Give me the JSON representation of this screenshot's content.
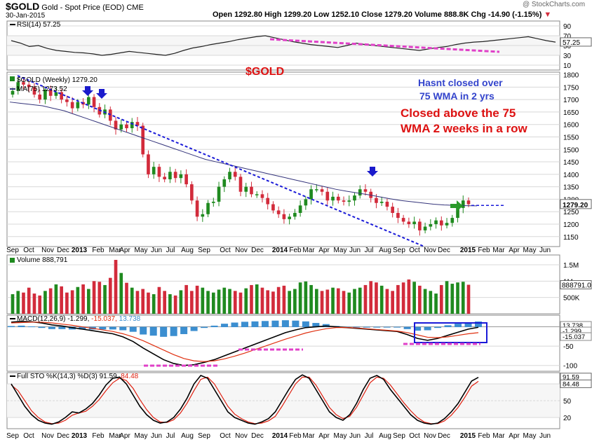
{
  "header": {
    "symbol": "$GOLD",
    "name": "Gold - Spot Price (EOD)",
    "exchange": "CME",
    "date": "30-Jan-2015",
    "ohlc": "Open 1292.80  High 1299.20  Low 1252.10  Close 1279.20  Volume 888.8K  Chg -14.90 (-1.15%)",
    "change_arrow": "▼",
    "watermark": "@ StockCharts.com"
  },
  "annotations": {
    "title": "$GOLD",
    "note1_line1": "Hasnt closed over",
    "note1_line2": "75 WMA in 2 yrs",
    "note2_line1": "Closed above the 75",
    "note2_line2": "WMA  2 weeks in a row",
    "colors": {
      "title": "#dd1111",
      "note1": "#3344cc",
      "note2": "#dd1111"
    }
  },
  "colors": {
    "up": "#1f8a1f",
    "down": "#d22b3b",
    "ma": "#33337a",
    "grid": "#d8d8d8",
    "trend": "#1a1ad8",
    "pink": "#e040c8",
    "rsi": "#222222",
    "macd": "#000000",
    "signal": "#e03010",
    "hist": "#3b8ed0",
    "stok": "#000000",
    "stod": "#e02010",
    "arrow_blue": "#1a1acc",
    "arrow_green": "#2a9a2a"
  },
  "chart_data": [
    {
      "panel": "rsi",
      "type": "line",
      "legend": "RSI(14) 57.25",
      "legend_prefix": "RSI(14)",
      "legend_value": "57.25",
      "y_ticks": [
        90,
        70,
        50,
        30,
        10
      ],
      "ylim": [
        0,
        100
      ],
      "last_value_label": "57.25",
      "values": [
        60,
        55,
        48,
        50,
        44,
        40,
        38,
        36,
        35,
        33,
        30,
        32,
        35,
        38,
        36,
        34,
        32,
        30,
        34,
        40,
        45,
        48,
        52,
        55,
        58,
        62,
        65,
        68,
        70,
        66,
        62,
        58,
        55,
        52,
        50,
        48,
        46,
        50,
        55,
        52,
        50,
        48,
        46,
        44,
        42,
        40,
        43,
        46,
        48,
        52,
        55,
        57,
        58,
        60,
        62,
        64,
        66,
        68,
        64,
        60,
        57
      ]
    },
    {
      "panel": "price",
      "type": "candlestick",
      "legend_line1": "$GOLD (Weekly) 1279.20",
      "legend_line2": "MA(75) 1273.52",
      "y_ticks": [
        1800,
        1750,
        1700,
        1650,
        1600,
        1550,
        1500,
        1450,
        1400,
        1350,
        1300,
        1250,
        1200,
        1150
      ],
      "ylim": [
        1110,
        1810
      ],
      "last_price_label": "1279.20",
      "ma_last_label": "1273.52",
      "x_labels": [
        "Sep",
        "Oct",
        "Nov",
        "Dec",
        "2013",
        "Feb",
        "Mar",
        "Apr",
        "May",
        "Jun",
        "Jul",
        "Aug",
        "Sep",
        "Oct",
        "Nov",
        "Dec",
        "2014",
        "Feb",
        "Mar",
        "Apr",
        "May",
        "Jun",
        "Jul",
        "Aug",
        "Sep",
        "Oct",
        "Nov",
        "Dec",
        "2015",
        "Feb",
        "Mar",
        "Apr",
        "May",
        "Jun"
      ],
      "closes": [
        1735,
        1770,
        1760,
        1750,
        1720,
        1700,
        1740,
        1715,
        1730,
        1700,
        1690,
        1665,
        1690,
        1680,
        1710,
        1670,
        1640,
        1660,
        1615,
        1580,
        1600,
        1585,
        1610,
        1595,
        1480,
        1400,
        1430,
        1390,
        1380,
        1410,
        1385,
        1400,
        1360,
        1295,
        1230,
        1240,
        1285,
        1290,
        1350,
        1380,
        1410,
        1390,
        1330,
        1350,
        1320,
        1320,
        1305,
        1280,
        1255,
        1240,
        1220,
        1230,
        1245,
        1275,
        1300,
        1340,
        1340,
        1330,
        1295,
        1310,
        1295,
        1290,
        1295,
        1315,
        1340,
        1330,
        1305,
        1285,
        1290,
        1270,
        1245,
        1225,
        1210,
        1200,
        1210,
        1175,
        1190,
        1200,
        1215,
        1195,
        1205,
        1225,
        1265,
        1295,
        1280
      ],
      "ma75": [
        1690,
        1685,
        1680,
        1675,
        1665,
        1655,
        1640,
        1625,
        1610,
        1595,
        1580,
        1565,
        1550,
        1535,
        1520,
        1505,
        1490,
        1475,
        1460,
        1450,
        1440,
        1430,
        1420,
        1410,
        1400,
        1390,
        1380,
        1370,
        1360,
        1350,
        1340,
        1332,
        1325,
        1318,
        1310,
        1302,
        1295,
        1290,
        1285,
        1280,
        1277,
        1275,
        1274,
        1273.5
      ]
    },
    {
      "panel": "volume",
      "type": "bar",
      "legend": "Volume 888,791",
      "legend_prefix": "Volume",
      "legend_value": "888,791",
      "y_ticks": [
        "1.5M",
        "1M",
        "500K"
      ],
      "y_tick_values": [
        1500000,
        1000000,
        500000
      ],
      "ylim": [
        0,
        1800000
      ],
      "last_value_label": "888791.0",
      "values": [
        600000,
        700000,
        650000,
        800000,
        620000,
        560000,
        700000,
        780000,
        900000,
        840000,
        650000,
        720000,
        820000,
        900000,
        760000,
        1000000,
        980000,
        880000,
        1100000,
        1650000,
        1250000,
        950000,
        800000,
        700000,
        760000,
        650000,
        600000,
        820000,
        700000,
        600000,
        560000,
        720000,
        880000,
        700000,
        860000,
        800000,
        700000,
        650000,
        740000,
        800000,
        760000,
        700000,
        650000,
        780000,
        880000,
        900000,
        800000,
        720000,
        680000,
        820000,
        860000,
        700000,
        760000,
        960000,
        990000,
        880000,
        760000,
        700000,
        740000,
        800000,
        780000,
        700000,
        650000,
        760000,
        800000,
        880000,
        1000000,
        960000,
        860000,
        760000,
        700000,
        880000,
        960000,
        1050000,
        980000,
        860000,
        760000,
        700000,
        620000,
        880000,
        1000000,
        920000,
        960000,
        980000,
        889000
      ]
    },
    {
      "panel": "macd",
      "type": "line",
      "legend_prefix": "MACD(12,26,9)",
      "legend_macd": "-1.299,",
      "legend_signal": "-15.037,",
      "legend_hist": "13.738",
      "y_ticks": [
        -50,
        -100
      ],
      "ylim": [
        -115,
        30
      ],
      "labels_right": [
        "13.738",
        "-1.299",
        "-15.037"
      ],
      "macd": [
        12,
        14,
        13,
        10,
        5,
        2,
        -2,
        -6,
        -10,
        -14,
        -18,
        -26,
        -38,
        -55,
        -70,
        -85,
        -95,
        -100,
        -98,
        -92,
        -85,
        -75,
        -65,
        -55,
        -45,
        -35,
        -25,
        -15,
        -8,
        -2,
        0,
        2,
        0,
        -2,
        -4,
        -6,
        -8,
        -10,
        -12,
        -20,
        -30,
        -35,
        -30,
        -22,
        -14,
        -6,
        -1.3
      ],
      "signal": [
        10,
        11,
        12,
        12,
        10,
        7,
        4,
        0,
        -4,
        -8,
        -12,
        -18,
        -26,
        -36,
        -48,
        -60,
        -72,
        -82,
        -88,
        -90,
        -88,
        -83,
        -76,
        -68,
        -59,
        -50,
        -41,
        -32,
        -24,
        -16,
        -10,
        -5,
        -2,
        -2,
        -3,
        -5,
        -7,
        -9,
        -11,
        -15,
        -21,
        -27,
        -28,
        -26,
        -22,
        -18,
        -15.037
      ],
      "hist": [
        2,
        3,
        1,
        -2,
        -5,
        -5,
        -6,
        -6,
        -6,
        -6,
        -6,
        -8,
        -12,
        -19,
        -22,
        -25,
        -23,
        -18,
        -10,
        -2,
        3,
        8,
        11,
        13,
        14,
        15,
        16,
        17,
        16,
        14,
        10,
        7,
        2,
        0,
        -1,
        -1,
        -1,
        -1,
        -1,
        -5,
        -9,
        -8,
        -2,
        4,
        8,
        12,
        13.738
      ]
    },
    {
      "panel": "stochastic",
      "type": "line",
      "legend_prefix": "Full STO %K(14,3) %D(3)",
      "legend_k": "91.59,",
      "legend_d": "84.48",
      "y_ticks": [
        80,
        50,
        20
      ],
      "ylim": [
        0,
        100
      ],
      "labels_right": [
        "91.59",
        "84.48"
      ],
      "k": [
        80,
        60,
        40,
        25,
        15,
        10,
        8,
        12,
        20,
        30,
        28,
        35,
        45,
        60,
        78,
        90,
        92,
        80,
        60,
        40,
        25,
        15,
        10,
        12,
        20,
        35,
        55,
        80,
        95,
        90,
        70,
        50,
        30,
        20,
        15,
        10,
        8,
        12,
        18,
        30,
        50,
        70,
        88,
        96,
        90,
        70,
        50,
        30,
        20,
        15,
        25,
        45,
        70,
        90,
        95,
        88,
        70,
        55,
        40,
        25,
        15,
        10,
        8,
        10,
        18,
        30,
        45,
        65,
        85,
        91.59
      ],
      "d": [
        78,
        68,
        50,
        32,
        20,
        12,
        9,
        10,
        15,
        24,
        28,
        31,
        40,
        52,
        68,
        82,
        90,
        86,
        72,
        52,
        34,
        20,
        12,
        11,
        16,
        28,
        46,
        68,
        88,
        92,
        80,
        60,
        40,
        26,
        18,
        12,
        9,
        10,
        14,
        22,
        40,
        60,
        80,
        92,
        92,
        78,
        58,
        38,
        25,
        18,
        22,
        38,
        60,
        82,
        92,
        90,
        78,
        62,
        46,
        32,
        20,
        12,
        9,
        9,
        14,
        24,
        38,
        56,
        76,
        84.48
      ]
    }
  ]
}
